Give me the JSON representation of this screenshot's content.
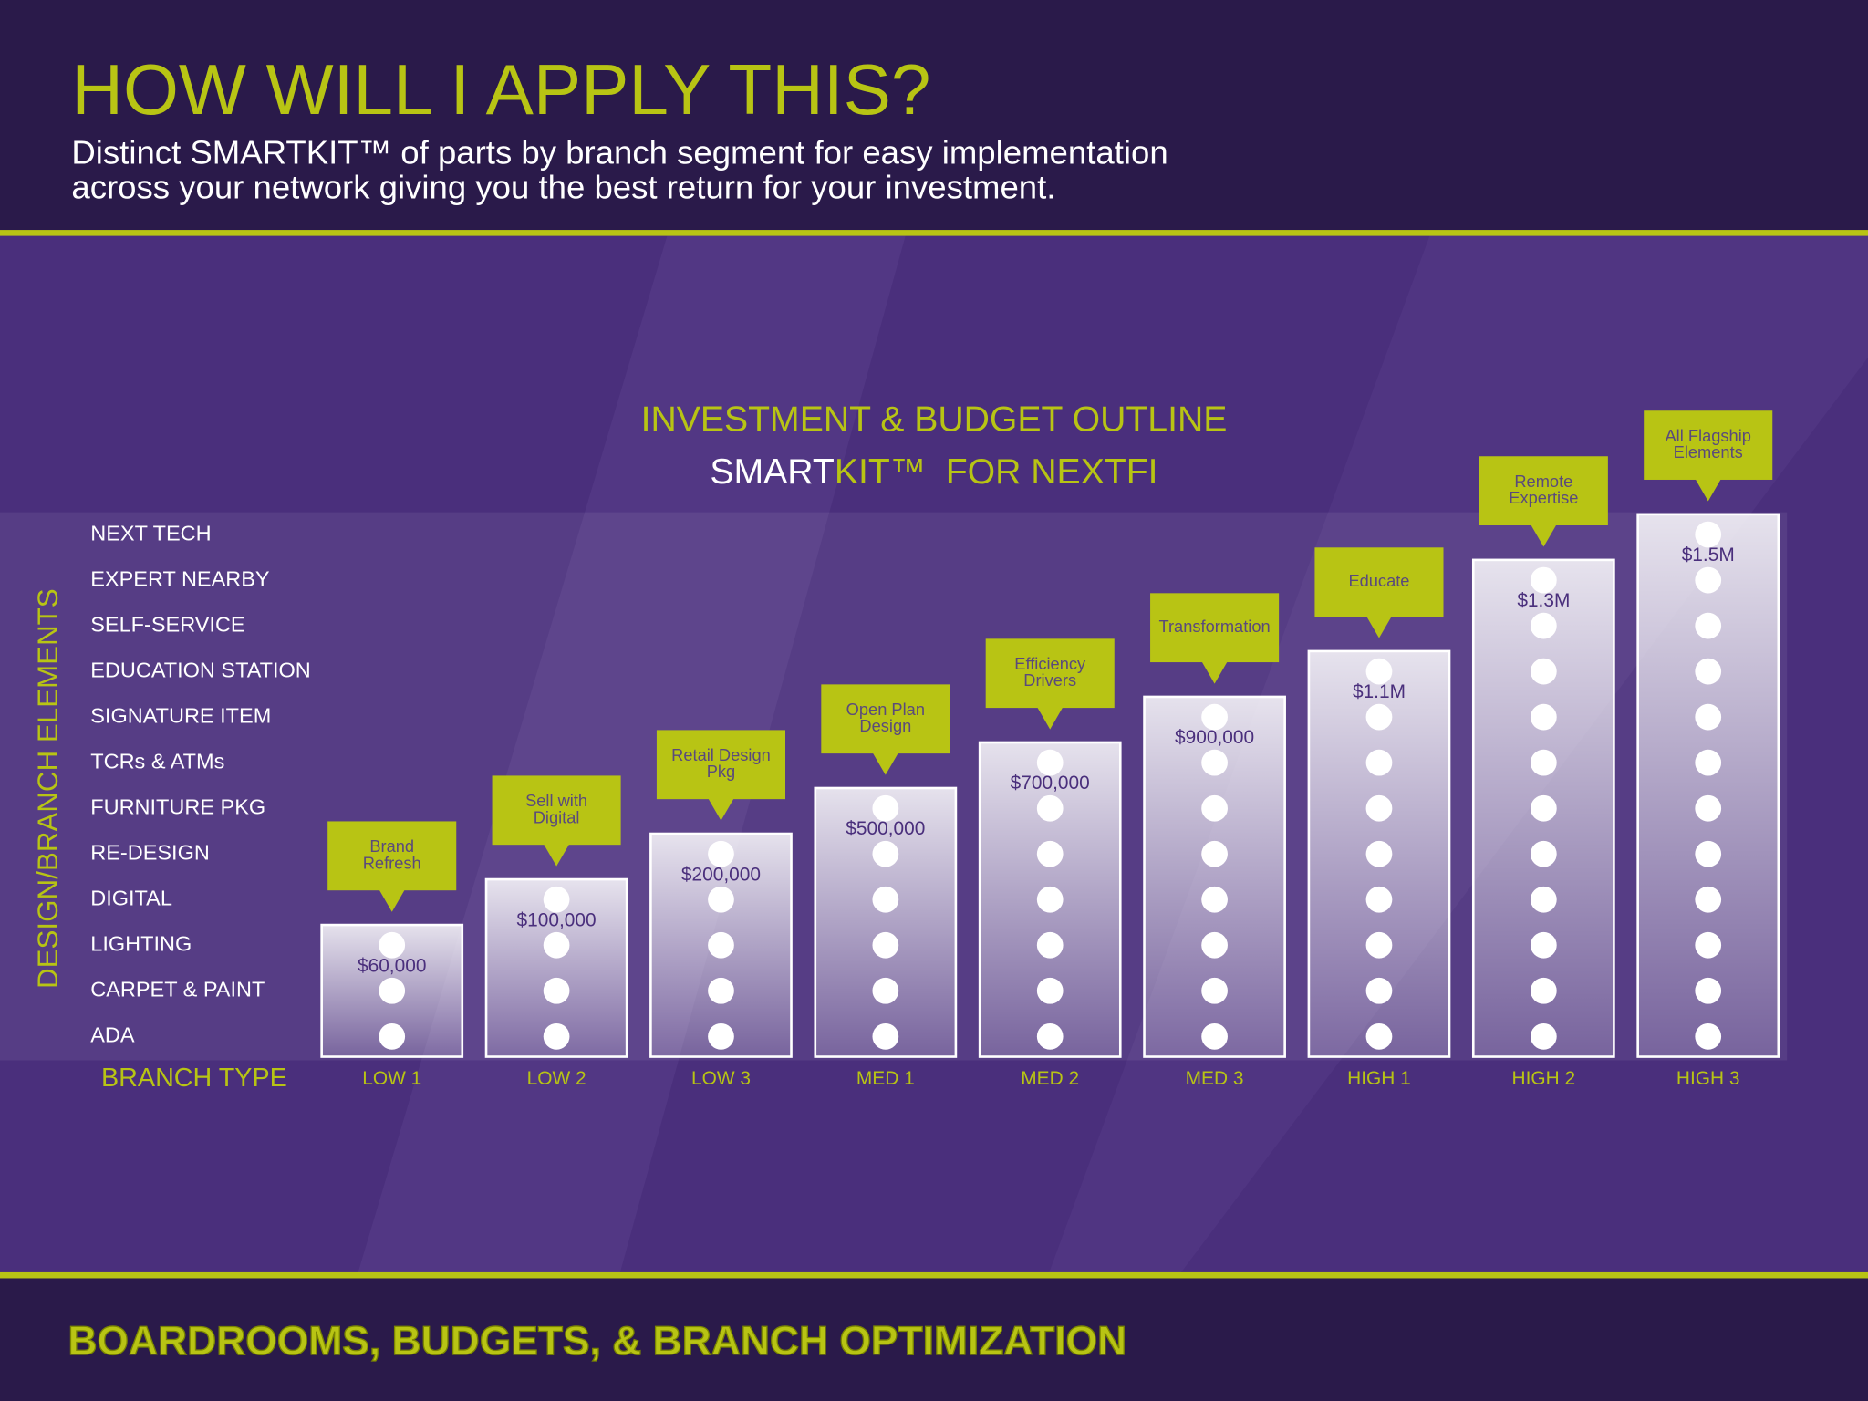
{
  "header": {
    "title": "HOW WILL I APPLY THIS?",
    "subtitle": [
      "Distinct SMARTKIT™ of parts by branch segment for easy implementation",
      "across your network giving you the best return for your investment."
    ]
  },
  "chart_data": {
    "type": "bar",
    "title": "INVESTMENT & BUDGET OUTLINE",
    "subtitle": [
      "SMART",
      "KIT™  FOR NEXTFI"
    ],
    "y_label": "DESIGN/BRANCH ELEMENTS",
    "x_label": "BRANCH TYPE",
    "rows": [
      "ADA",
      "CARPET & PAINT",
      "LIGHTING",
      "DIGITAL",
      "RE-DESIGN",
      "FURNITURE PKG",
      "TCRs & ATMs",
      "SIGNATURE ITEM",
      "EDUCATION STATION",
      "SELF-SERVICE",
      "EXPERT NEARBY",
      "NEXT TECH"
    ],
    "categories": [
      "LOW 1",
      "LOW 2",
      "LOW 3",
      "MED 1",
      "MED 2",
      "MED 3",
      "HIGH 1",
      "HIGH 2",
      "HIGH 3"
    ],
    "values": [
      3,
      4,
      5,
      6,
      7,
      8,
      9,
      11,
      12
    ],
    "budgets": [
      "$60,000",
      "$100,000",
      "$200,000",
      "$500,000",
      "$700,000",
      "$900,000",
      "$1.1M",
      "$1.3M",
      "$1.5M"
    ],
    "callouts": [
      [
        "Brand",
        "Refresh"
      ],
      [
        "Sell with",
        "Digital"
      ],
      [
        "Retail Design",
        "Pkg"
      ],
      [
        "Open Plan",
        "Design"
      ],
      [
        "Efficiency",
        "Drivers"
      ],
      [
        "Transformation"
      ],
      [
        "Educate"
      ],
      [
        "Remote",
        "Expertise"
      ],
      [
        "All Flagship",
        "Elements"
      ]
    ],
    "color": "#b8c414"
  },
  "footer": {
    "text": "BOARDROOMS, BUDGETS, & BRANCH OPTIMIZATION"
  }
}
